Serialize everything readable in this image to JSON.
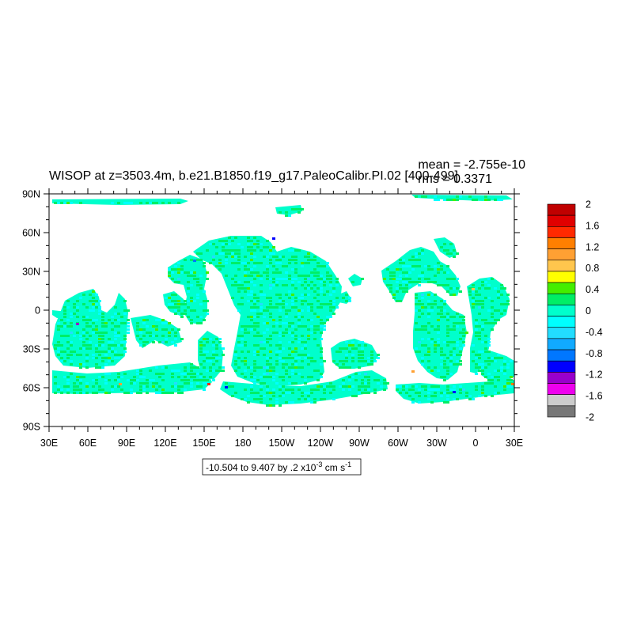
{
  "chart_data": {
    "type": "heatmap",
    "title": "WISOP at z=3503.4m, b.e21.B1850.f19_g17.PaleoCalibr.PI.02 [400-499]",
    "stats": {
      "mean": "mean = -2.755e-10",
      "rms": "rms = 0.3371"
    },
    "x_ticks": [
      "30E",
      "60E",
      "90E",
      "120E",
      "150E",
      "180",
      "150W",
      "120W",
      "90W",
      "60W",
      "30W",
      "0",
      "30E"
    ],
    "y_ticks": [
      "90N",
      "60N",
      "30N",
      "0",
      "30S",
      "60S",
      "90S"
    ],
    "xlim_deg_east": [
      30,
      390
    ],
    "ylim_deg_north": [
      -90,
      90
    ],
    "contour_info": {
      "text": "-10.504 to 9.407 by .2 x10",
      "exponent": "-3",
      "units": " cm s",
      "units_exp": "-1"
    },
    "colorbar": {
      "labels": [
        "2",
        "1.6",
        "1.2",
        "0.8",
        "0.4",
        "0",
        "-0.4",
        "-0.8",
        "-1.2",
        "-1.6",
        "-2"
      ],
      "colors": [
        "#c00000",
        "#e00000",
        "#ff2a00",
        "#ff7f00",
        "#ffa033",
        "#ffc64d",
        "#ffff00",
        "#44ee00",
        "#00ee66",
        "#00ffcc",
        "#00ffff",
        "#22ddff",
        "#11aaff",
        "#0077ff",
        "#0000ff",
        "#9900cc",
        "#ee00ee",
        "#cccccc",
        "#777777"
      ]
    },
    "dominant_colors": [
      "#00ffcc",
      "#00ee66",
      "#00ffff"
    ]
  }
}
